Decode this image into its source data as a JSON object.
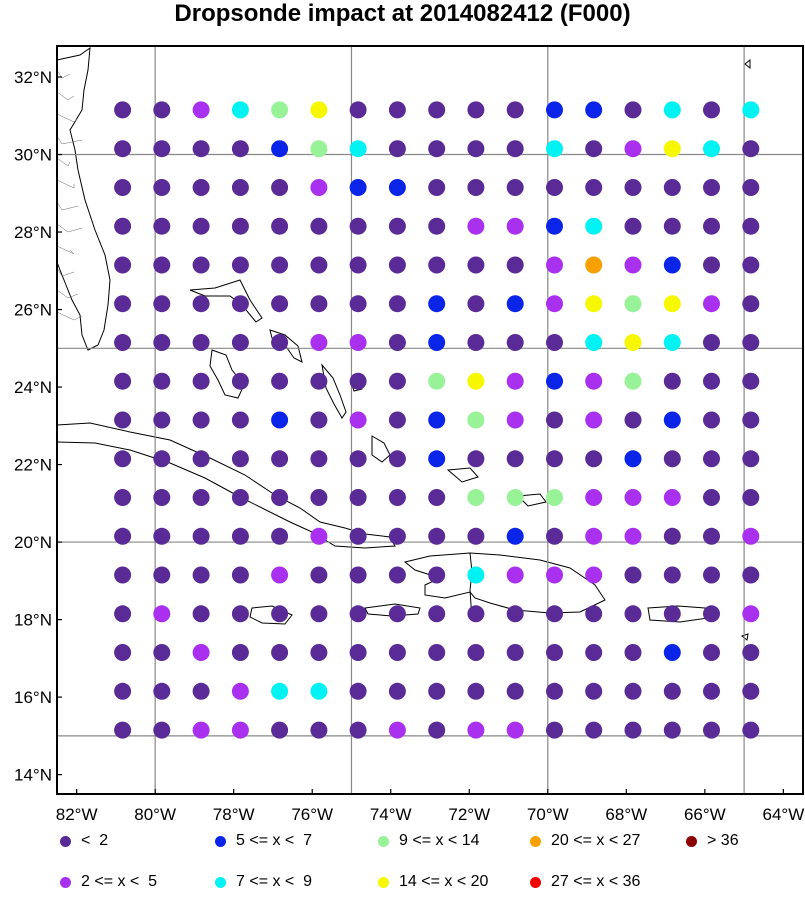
{
  "title": "Dropsonde impact at 2014082412 (F000)",
  "lat_labels": [
    "32°N",
    "30°N",
    "28°N",
    "26°N",
    "24°N",
    "22°N",
    "20°N",
    "18°N",
    "16°N",
    "14°N"
  ],
  "lon_labels": [
    "82°W",
    "80°W",
    "78°W",
    "76°W",
    "74°W",
    "72°W",
    "70°W",
    "68°W",
    "66°W",
    "64°W"
  ],
  "palette": [
    "#5a2a96",
    "#a830ee",
    "#0a24e8",
    "#00f2f2",
    "#98f298",
    "#f7f700",
    "#f7a000",
    "#f50000",
    "#8b0000"
  ],
  "legend": [
    {
      "label": "<  2",
      "color_index": 0
    },
    {
      "label": "5 <= x <  7",
      "color_index": 2
    },
    {
      "label": "9 <= x < 14",
      "color_index": 4
    },
    {
      "label": "20 <= x < 27",
      "color_index": 6
    },
    {
      "label": "> 36",
      "color_index": 8
    },
    {
      "label": "2 <= x <  5",
      "color_index": 1
    },
    {
      "label": "7 <= x <  9",
      "color_index": 3
    },
    {
      "label": "14 <= x < 20",
      "color_index": 5
    },
    {
      "label": "27 <= x < 36",
      "color_index": 7
    }
  ],
  "map_data": {
    "lon_range": [
      -82.5,
      -63.5
    ],
    "lat_range": [
      13.5,
      32.8
    ],
    "point_lons": [
      -80.83,
      -79.83,
      -78.83,
      -77.83,
      -76.83,
      -75.83,
      -74.83,
      -73.83,
      -72.83,
      -71.83,
      -70.83,
      -69.83,
      -68.83,
      -67.83,
      -66.83,
      -65.83,
      -64.83
    ],
    "point_lats": [
      31.15,
      30.15,
      29.15,
      28.15,
      27.15,
      26.15,
      25.15,
      24.15,
      23.15,
      22.15,
      21.15,
      20.15,
      19.15,
      18.15,
      17.15,
      16.15,
      15.15
    ],
    "categories": [
      [
        0,
        0,
        1,
        3,
        4,
        5,
        0,
        0,
        0,
        0,
        0,
        2,
        2,
        0,
        3,
        0,
        3
      ],
      [
        0,
        0,
        0,
        0,
        2,
        4,
        3,
        0,
        0,
        0,
        0,
        3,
        0,
        1,
        5,
        3,
        0
      ],
      [
        0,
        0,
        0,
        0,
        0,
        1,
        2,
        2,
        0,
        0,
        0,
        0,
        0,
        0,
        0,
        0,
        0
      ],
      [
        0,
        0,
        0,
        0,
        0,
        0,
        0,
        0,
        0,
        1,
        1,
        2,
        3,
        0,
        0,
        0,
        0
      ],
      [
        0,
        0,
        0,
        0,
        0,
        0,
        0,
        0,
        0,
        0,
        0,
        1,
        6,
        1,
        2,
        0,
        0
      ],
      [
        0,
        0,
        0,
        0,
        0,
        0,
        0,
        0,
        2,
        0,
        2,
        1,
        5,
        4,
        5,
        1,
        0
      ],
      [
        0,
        0,
        0,
        0,
        0,
        1,
        1,
        0,
        2,
        0,
        0,
        0,
        3,
        5,
        3,
        0,
        0
      ],
      [
        0,
        0,
        0,
        0,
        0,
        0,
        0,
        0,
        4,
        5,
        1,
        2,
        1,
        4,
        0,
        0,
        0
      ],
      [
        0,
        0,
        0,
        0,
        2,
        0,
        1,
        0,
        2,
        4,
        1,
        0,
        1,
        0,
        2,
        0,
        0
      ],
      [
        0,
        0,
        0,
        0,
        0,
        0,
        0,
        0,
        2,
        0,
        0,
        0,
        0,
        2,
        0,
        0,
        0
      ],
      [
        0,
        0,
        0,
        0,
        0,
        0,
        0,
        0,
        0,
        4,
        4,
        4,
        1,
        1,
        1,
        0,
        0
      ],
      [
        0,
        0,
        0,
        0,
        0,
        1,
        0,
        0,
        0,
        0,
        2,
        0,
        1,
        1,
        0,
        0,
        1
      ],
      [
        0,
        0,
        0,
        0,
        1,
        0,
        0,
        0,
        0,
        3,
        1,
        1,
        1,
        0,
        0,
        0,
        0
      ],
      [
        0,
        1,
        0,
        0,
        0,
        0,
        0,
        0,
        0,
        0,
        0,
        0,
        0,
        0,
        0,
        0,
        1
      ],
      [
        0,
        0,
        1,
        0,
        0,
        0,
        0,
        0,
        0,
        0,
        0,
        0,
        0,
        0,
        2,
        0,
        0
      ],
      [
        0,
        0,
        0,
        1,
        3,
        3,
        0,
        0,
        0,
        0,
        0,
        0,
        0,
        0,
        0,
        0,
        0
      ],
      [
        0,
        0,
        1,
        1,
        0,
        0,
        0,
        1,
        0,
        1,
        1,
        0,
        0,
        0,
        0,
        0,
        0
      ]
    ]
  }
}
